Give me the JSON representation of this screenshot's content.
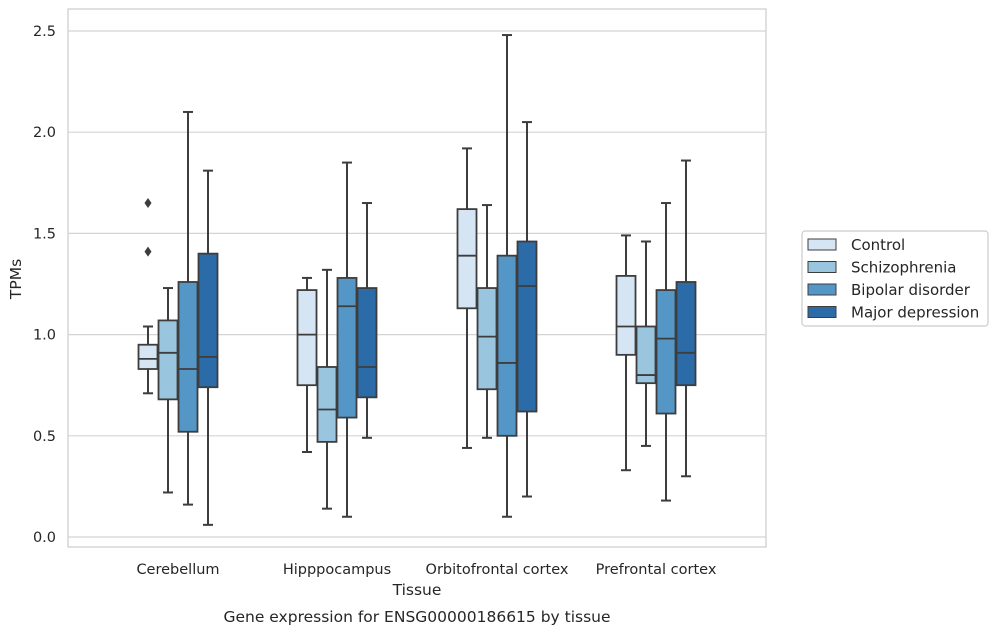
{
  "chart_data": {
    "type": "box",
    "caption": "Gene expression for ENSG00000186615 by tissue",
    "xlabel": "Tissue",
    "ylabel": "TPMs",
    "ylim": [
      -0.05,
      2.6
    ],
    "yticks": [
      "0.0",
      "0.5",
      "1.0",
      "1.5",
      "2.0",
      "2.5"
    ],
    "grid": "horizontal",
    "legend_position": "right",
    "categories": [
      "Cerebellum",
      "Hipppocampus",
      "Orbitofrontal cortex",
      "Prefrontal cortex"
    ],
    "series": [
      {
        "name": "Control",
        "color": "#d6e5f4",
        "boxes": [
          {
            "whisker_low": 0.71,
            "q1": 0.83,
            "median": 0.88,
            "q3": 0.95,
            "whisker_high": 1.04,
            "outliers": [
              1.41,
              1.65
            ]
          },
          {
            "whisker_low": 0.42,
            "q1": 0.75,
            "median": 1.0,
            "q3": 1.22,
            "whisker_high": 1.28,
            "outliers": []
          },
          {
            "whisker_low": 0.44,
            "q1": 1.13,
            "median": 1.39,
            "q3": 1.62,
            "whisker_high": 1.92,
            "outliers": []
          },
          {
            "whisker_low": 0.33,
            "q1": 0.9,
            "median": 1.04,
            "q3": 1.29,
            "whisker_high": 1.49,
            "outliers": []
          }
        ]
      },
      {
        "name": "Schizophrenia",
        "color": "#9ac5de",
        "boxes": [
          {
            "whisker_low": 0.22,
            "q1": 0.68,
            "median": 0.91,
            "q3": 1.07,
            "whisker_high": 1.23,
            "outliers": []
          },
          {
            "whisker_low": 0.14,
            "q1": 0.47,
            "median": 0.63,
            "q3": 0.84,
            "whisker_high": 1.32,
            "outliers": []
          },
          {
            "whisker_low": 0.49,
            "q1": 0.73,
            "median": 0.99,
            "q3": 1.23,
            "whisker_high": 1.64,
            "outliers": []
          },
          {
            "whisker_low": 0.45,
            "q1": 0.76,
            "median": 0.8,
            "q3": 1.04,
            "whisker_high": 1.46,
            "outliers": []
          }
        ]
      },
      {
        "name": "Bipolar disorder",
        "color": "#5497c6",
        "boxes": [
          {
            "whisker_low": 0.16,
            "q1": 0.52,
            "median": 0.83,
            "q3": 1.26,
            "whisker_high": 2.1,
            "outliers": []
          },
          {
            "whisker_low": 0.1,
            "q1": 0.59,
            "median": 1.14,
            "q3": 1.28,
            "whisker_high": 1.85,
            "outliers": []
          },
          {
            "whisker_low": 0.1,
            "q1": 0.5,
            "median": 0.86,
            "q3": 1.39,
            "whisker_high": 2.48,
            "outliers": []
          },
          {
            "whisker_low": 0.18,
            "q1": 0.61,
            "median": 0.98,
            "q3": 1.22,
            "whisker_high": 1.65,
            "outliers": []
          }
        ]
      },
      {
        "name": "Major depression",
        "color": "#2b6ca8",
        "boxes": [
          {
            "whisker_low": 0.06,
            "q1": 0.74,
            "median": 0.89,
            "q3": 1.4,
            "whisker_high": 1.81,
            "outliers": []
          },
          {
            "whisker_low": 0.49,
            "q1": 0.69,
            "median": 0.84,
            "q3": 1.23,
            "whisker_high": 1.65,
            "outliers": []
          },
          {
            "whisker_low": 0.2,
            "q1": 0.62,
            "median": 1.24,
            "q3": 1.46,
            "whisker_high": 2.05,
            "outliers": []
          },
          {
            "whisker_low": 0.3,
            "q1": 0.75,
            "median": 0.91,
            "q3": 1.26,
            "whisker_high": 1.86,
            "outliers": []
          }
        ]
      }
    ]
  }
}
